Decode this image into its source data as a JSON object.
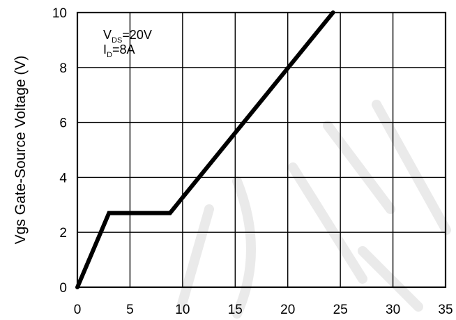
{
  "chart_data": {
    "type": "line",
    "title": "",
    "xlabel": "",
    "ylabel": "Vgs Gate-Source Voltage (V)",
    "xlim": [
      0,
      35
    ],
    "ylim": [
      0,
      10
    ],
    "x_ticks": [
      "0",
      "5",
      "10",
      "15",
      "20",
      "25",
      "30",
      "35"
    ],
    "y_ticks": [
      "0",
      "2",
      "4",
      "6",
      "8",
      "10"
    ],
    "grid": true,
    "annotation": {
      "line1_main": "V",
      "line1_sub": "DS",
      "line1_rest": "=20V",
      "line2_main": "I",
      "line2_sub": "D",
      "line2_rest": "=8A"
    },
    "series": [
      {
        "x": [
          0,
          3,
          8.8,
          24.3
        ],
        "y": [
          0,
          2.7,
          2.7,
          10
        ]
      }
    ]
  }
}
